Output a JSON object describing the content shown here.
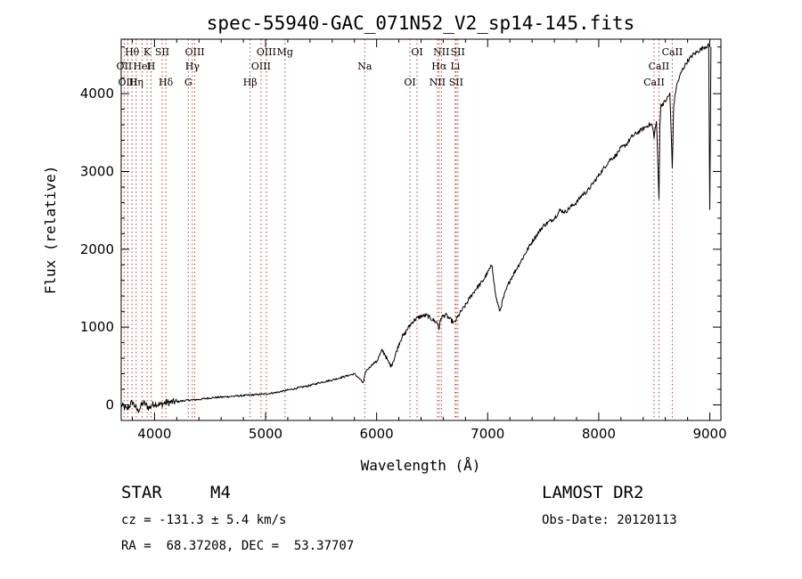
{
  "chart_data": {
    "type": "line",
    "title": "spec-55940-GAC_071N52_V2_sp14-145.fits",
    "xlabel": "Wavelength (Å)",
    "ylabel": "Flux (relative)",
    "xlim": [
      3700,
      9100
    ],
    "ylim": [
      -200,
      4700
    ],
    "xticks": [
      4000,
      5000,
      6000,
      7000,
      8000,
      9000
    ],
    "yticks": [
      0,
      1000,
      2000,
      3000,
      4000
    ],
    "grid": false,
    "series": [
      {
        "name": "spectrum",
        "x": [
          3700,
          3750,
          3800,
          3850,
          3900,
          3950,
          4000,
          4050,
          4100,
          4200,
          4300,
          4400,
          4500,
          4600,
          4700,
          4800,
          4900,
          5000,
          5100,
          5200,
          5300,
          5400,
          5500,
          5600,
          5700,
          5800,
          5850,
          5880,
          5893,
          5905,
          5930,
          5960,
          6000,
          6050,
          6080,
          6100,
          6130,
          6160,
          6200,
          6230,
          6250,
          6270,
          6300,
          6330,
          6360,
          6400,
          6450,
          6500,
          6550,
          6563,
          6580,
          6620,
          6660,
          6700,
          6730,
          6760,
          6800,
          6850,
          6900,
          6950,
          7000,
          7020,
          7040,
          7055,
          7070,
          7090,
          7110,
          7130,
          7160,
          7200,
          7300,
          7400,
          7500,
          7550,
          7600,
          7650,
          7700,
          7750,
          7800,
          7850,
          7900,
          7950,
          8000,
          8050,
          8100,
          8150,
          8200,
          8250,
          8300,
          8350,
          8400,
          8450,
          8480,
          8498,
          8520,
          8530,
          8542,
          8550,
          8560,
          8600,
          8640,
          8650,
          8662,
          8675,
          8700,
          8750,
          8800,
          8850,
          8900,
          8950,
          8990,
          9000,
          9010
        ],
        "values": [
          0,
          -60,
          40,
          -80,
          30,
          -40,
          20,
          0,
          30,
          40,
          60,
          70,
          90,
          100,
          110,
          120,
          130,
          140,
          160,
          190,
          220,
          250,
          290,
          320,
          360,
          400,
          330,
          280,
          370,
          440,
          470,
          520,
          560,
          700,
          640,
          560,
          500,
          600,
          780,
          880,
          900,
          960,
          1020,
          1080,
          1110,
          1140,
          1150,
          1100,
          1050,
          980,
          1120,
          1160,
          1100,
          1050,
          1130,
          1200,
          1280,
          1400,
          1500,
          1580,
          1700,
          1750,
          1800,
          1600,
          1420,
          1300,
          1200,
          1320,
          1450,
          1600,
          1850,
          2100,
          2300,
          2350,
          2400,
          2500,
          2480,
          2550,
          2600,
          2700,
          2750,
          2850,
          2950,
          3050,
          3150,
          3200,
          3300,
          3350,
          3450,
          3500,
          3550,
          3600,
          3600,
          3450,
          3650,
          3200,
          2640,
          3600,
          3850,
          3900,
          4000,
          3600,
          3050,
          3850,
          4100,
          4300,
          4420,
          4500,
          4550,
          4600,
          4620,
          2500,
          4600
        ]
      }
    ],
    "lines": [
      {
        "name": "Hθ",
        "x": 3798
      },
      {
        "name": "OII",
        "x": 3727
      },
      {
        "name": "OIII",
        "x": 3760
      },
      {
        "name": "K",
        "x": 3934
      },
      {
        "name": "HeI",
        "x": 3889
      },
      {
        "name": "Hη",
        "x": 3835
      },
      {
        "name": "SII",
        "x": 4069
      },
      {
        "name": "H",
        "x": 3969
      },
      {
        "name": "Hδ",
        "x": 4102
      },
      {
        "name": "OIII",
        "x": 4363
      },
      {
        "name": "Hγ",
        "x": 4341
      },
      {
        "name": "G",
        "x": 4304
      },
      {
        "name": "OIII",
        "x": 5007
      },
      {
        "name": "OIII",
        "x": 4959
      },
      {
        "name": "Hβ",
        "x": 4861
      },
      {
        "name": "Mg",
        "x": 5175
      },
      {
        "name": "Na",
        "x": 5893
      },
      {
        "name": "OI",
        "x": 6300
      },
      {
        "name": "OI",
        "x": 6364
      },
      {
        "name": "Hα",
        "x": 6563
      },
      {
        "name": "SII",
        "x": 6716
      },
      {
        "name": "NII",
        "x": 6583
      },
      {
        "name": "Li",
        "x": 6708
      },
      {
        "name": "NII",
        "x": 6548
      },
      {
        "name": "SII",
        "x": 6731
      },
      {
        "name": "CaII",
        "x": 8542
      },
      {
        "name": "CaII",
        "x": 8498
      },
      {
        "name": "CaII",
        "x": 8662
      }
    ]
  },
  "info": {
    "class": "STAR",
    "subclass": "M4",
    "survey": "LAMOST DR2",
    "cz": "cz = -131.3 ± 5.4 km/s",
    "obs_date": "Obs-Date: 20120113",
    "radec": "RA =  68.37208, DEC =  53.37707"
  },
  "colors": {
    "axis": "#000000",
    "line_marker": "#cc3333",
    "spectrum": "#000000"
  }
}
